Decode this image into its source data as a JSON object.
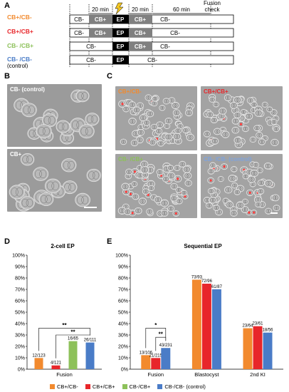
{
  "panels": {
    "a": {
      "letter": "A",
      "row_labels": [
        {
          "text": "CB+/CB-",
          "color": "#f28a2e"
        },
        {
          "text": "CB+/CB+",
          "color": "#e8262a"
        },
        {
          "text": "CB- /CB+",
          "color": "#8dc15a"
        },
        {
          "text": "CB- /CB-",
          "color": "#4a7cc7"
        }
      ],
      "control_note": "(control)",
      "header_20min_left": "20 min",
      "header_20min_right": "20 min",
      "header_60min": "60 min",
      "header_fusion_line1": "Fusion",
      "header_fusion_line2": "check",
      "rows": [
        {
          "pre": "CB-",
          "mid": "CB+",
          "ep": "EP",
          "post1": "CB+",
          "post2": "CB-"
        },
        {
          "pre": "CB-",
          "mid": "CB+",
          "ep": "EP",
          "post1": "CB+",
          "post2": "CB-"
        },
        {
          "pre": "CB-",
          "mid": "",
          "ep": "EP",
          "post1": "CB+",
          "post2": "CB-"
        },
        {
          "pre": "CB-",
          "mid": "",
          "ep": "EP",
          "post1": "",
          "post2": "CB-"
        }
      ]
    },
    "b": {
      "letter": "B",
      "images": [
        {
          "label": "CB- (control)"
        },
        {
          "label": "CB+"
        }
      ]
    },
    "c": {
      "letter": "C",
      "images": [
        {
          "label": "CB+/CB-",
          "color": "#f28a2e"
        },
        {
          "label": "CB+/CB+",
          "color": "#e8262a"
        },
        {
          "label": "CB- /CB+",
          "color": "#8dc15a"
        },
        {
          "label": "CB- /CB- (control)",
          "color": "#4a7cc7"
        }
      ]
    },
    "d": {
      "letter": "D"
    },
    "e": {
      "letter": "E"
    }
  },
  "colors": {
    "orange": "#f28a2e",
    "red": "#e8262a",
    "green": "#8dc15a",
    "blue": "#4a7cc7"
  },
  "legend": [
    {
      "name": "CB+/CB-",
      "color": "#f28a2e"
    },
    {
      "name": "CB+/CB+",
      "color": "#e8262a"
    },
    {
      "name": "CB-/CB+",
      "color": "#8dc15a"
    },
    {
      "name": "CB-/CB- (control)",
      "color": "#4a7cc7"
    }
  ],
  "chart_data": [
    {
      "type": "bar",
      "title": "2-cell EP",
      "categories": [
        "Fusion"
      ],
      "ylim": [
        0,
        100
      ],
      "yticks": [
        "0%",
        "10%",
        "20%",
        "30%",
        "40%",
        "50%",
        "60%",
        "70%",
        "80%",
        "90%",
        "100%"
      ],
      "series": [
        {
          "name": "CB+/CB-",
          "values": [
            9.8
          ],
          "labels": [
            "12/123"
          ]
        },
        {
          "name": "CB+/CB+",
          "values": [
            3.3
          ],
          "labels": [
            "4/121"
          ]
        },
        {
          "name": "CB-/CB+",
          "values": [
            24.6
          ],
          "labels": [
            "16/65"
          ]
        },
        {
          "name": "CB-/CB- (control)",
          "values": [
            23.4
          ],
          "labels": [
            "26/111"
          ]
        }
      ],
      "significance": [
        "**",
        "**"
      ]
    },
    {
      "type": "bar",
      "title": "Sequential EP",
      "categories": [
        "Fusion",
        "Blastocyst",
        "2nd KI"
      ],
      "ylim": [
        0,
        100
      ],
      "yticks": [
        "0%",
        "10%",
        "20%",
        "30%",
        "40%",
        "50%",
        "60%",
        "70%",
        "80%",
        "90%",
        "100%"
      ],
      "series": [
        {
          "name": "CB+/CB-",
          "values": [
            12.3,
            78.5,
            35.9
          ],
          "labels": [
            "13/106",
            "73/93",
            "23/64"
          ]
        },
        {
          "name": "CB+/CB+",
          "values": [
            9.8,
            75.0,
            37.7
          ],
          "labels": [
            "21/215",
            "72/96",
            "23/61"
          ]
        },
        {
          "name": "CB-/CB- (control)",
          "values": [
            18.6,
            70.1,
            32.1
          ],
          "labels": [
            "43/231",
            "61/87",
            "18/56"
          ]
        }
      ],
      "significance": [
        "*",
        "**"
      ]
    }
  ]
}
